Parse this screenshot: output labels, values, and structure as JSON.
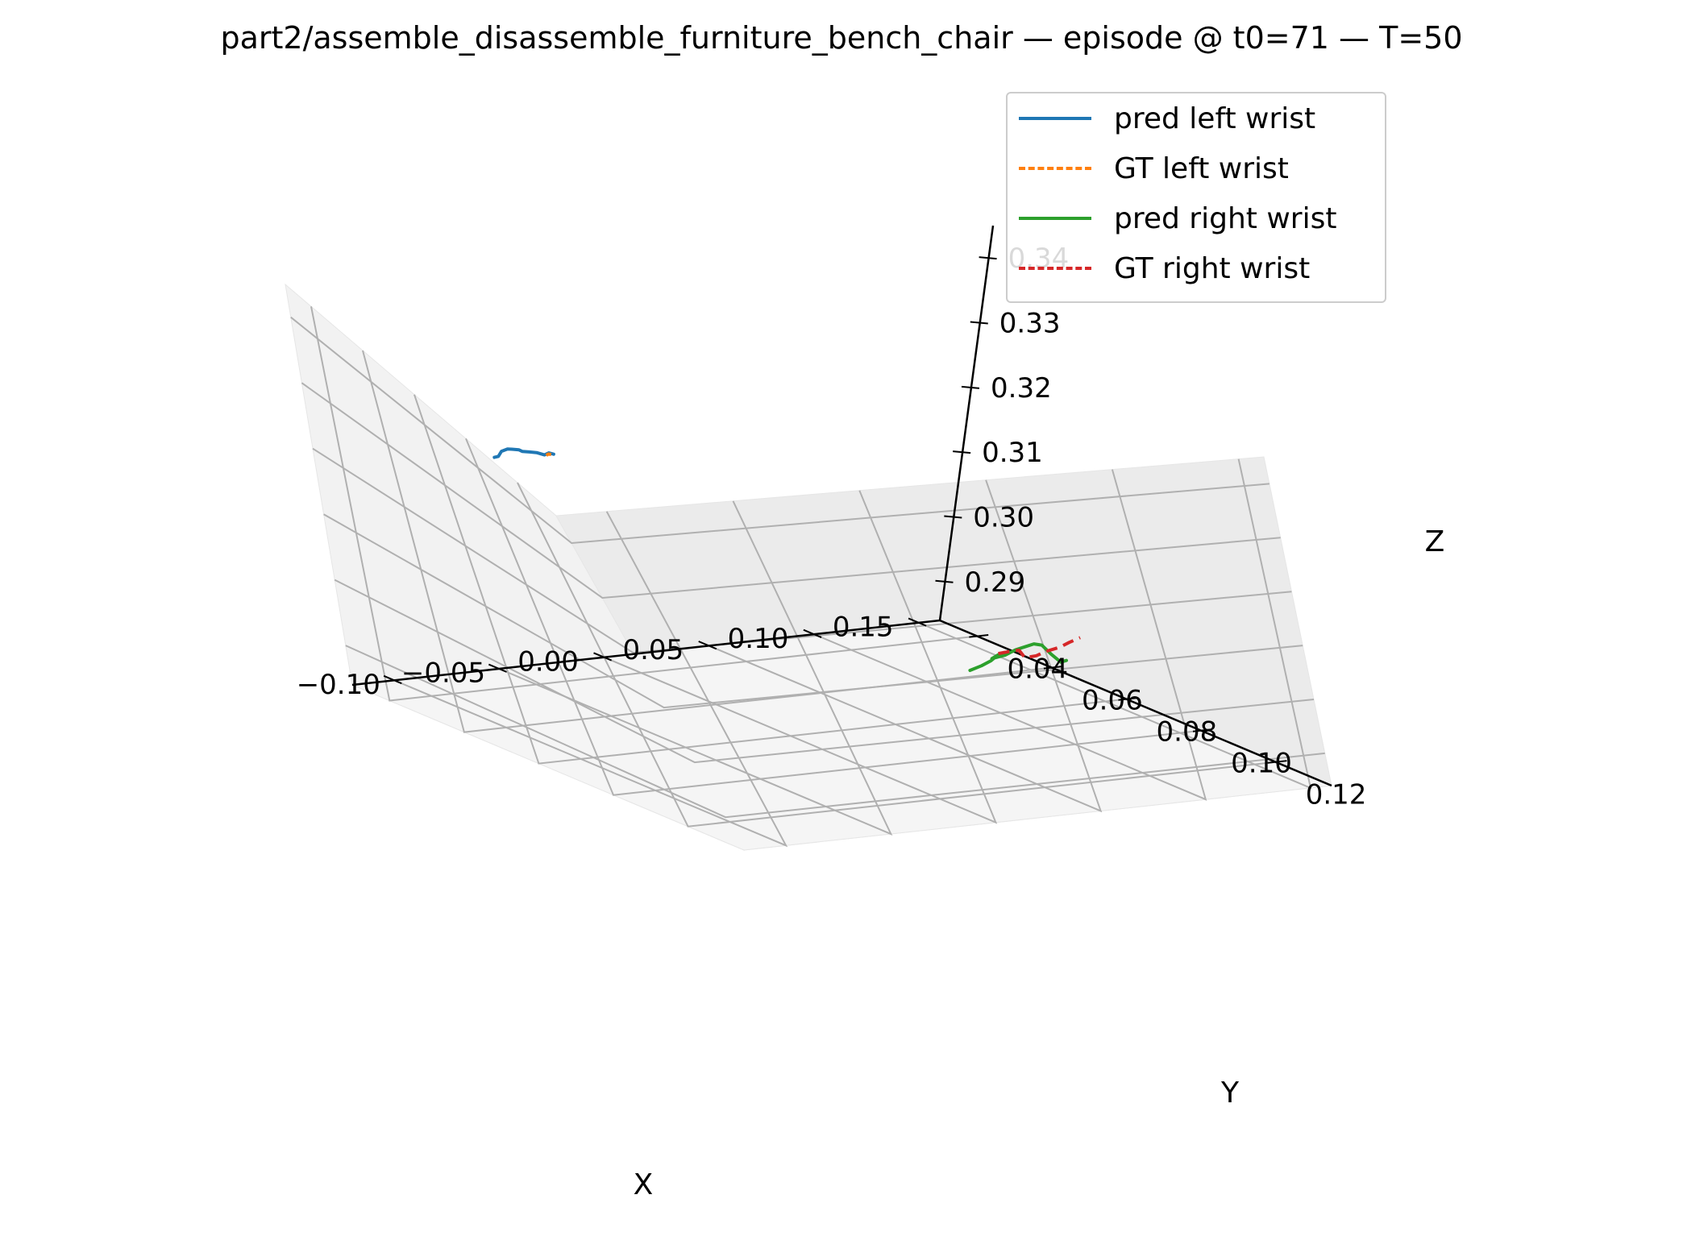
{
  "chart_data": {
    "type": "line",
    "projection": "3d",
    "title": "part2/assemble_disassemble_furniture_bench_chair — episode @ t0=71 — T=50",
    "xlabel": "X",
    "ylabel": "Y",
    "zlabel": "Z",
    "xlim": [
      -0.12,
      0.16
    ],
    "ylim": [
      0.03,
      0.135
    ],
    "zlim": [
      0.284,
      0.345
    ],
    "xticks": [
      "−0.10",
      "−0.05",
      "0.00",
      "0.05",
      "0.10",
      "0.15"
    ],
    "yticks": [
      "0.04",
      "0.06",
      "0.08",
      "0.10",
      "0.12"
    ],
    "zticks": [
      "0.29",
      "0.30",
      "0.31",
      "0.32",
      "0.33",
      "0.34"
    ],
    "grid": true,
    "legend_position": "top-right",
    "series": [
      {
        "name": "pred left wrist",
        "color": "#1f77b4",
        "style": "solid",
        "points": [
          [
            -0.112,
            0.1,
            0.3415
          ],
          [
            -0.111,
            0.101,
            0.342
          ],
          [
            -0.109,
            0.101,
            0.3428
          ],
          [
            -0.107,
            0.102,
            0.3435
          ],
          [
            -0.106,
            0.103,
            0.3438
          ],
          [
            -0.104,
            0.104,
            0.344
          ],
          [
            -0.103,
            0.104,
            0.3437
          ],
          [
            -0.101,
            0.105,
            0.3439
          ],
          [
            -0.099,
            0.106,
            0.3441
          ],
          [
            -0.097,
            0.107,
            0.344
          ],
          [
            -0.095,
            0.107,
            0.3443
          ],
          [
            -0.094,
            0.108,
            0.3444
          ]
        ]
      },
      {
        "name": "GT left wrist",
        "color": "#ff7f0e",
        "style": "dashed",
        "points": [
          [
            -0.097,
            0.108,
            0.3443
          ],
          [
            -0.096,
            0.108,
            0.3445
          ],
          [
            -0.095,
            0.108,
            0.3444
          ]
        ]
      },
      {
        "name": "pred right wrist",
        "color": "#2ca02c",
        "style": "solid",
        "points": [
          [
            0.121,
            0.06,
            0.285
          ],
          [
            0.123,
            0.062,
            0.2862
          ],
          [
            0.124,
            0.064,
            0.2875
          ],
          [
            0.124,
            0.066,
            0.289
          ],
          [
            0.121,
            0.066,
            0.2885
          ],
          [
            0.124,
            0.068,
            0.2895
          ],
          [
            0.127,
            0.069,
            0.2905
          ],
          [
            0.128,
            0.071,
            0.2915
          ],
          [
            0.129,
            0.073,
            0.2925
          ],
          [
            0.131,
            0.074,
            0.2925
          ],
          [
            0.132,
            0.076,
            0.2915
          ],
          [
            0.133,
            0.078,
            0.2907
          ],
          [
            0.134,
            0.079,
            0.2912
          ]
        ]
      },
      {
        "name": "GT right wrist",
        "color": "#d62728",
        "style": "dashed",
        "points": [
          [
            0.124,
            0.066,
            0.2892
          ],
          [
            0.126,
            0.068,
            0.29
          ],
          [
            0.127,
            0.07,
            0.2907
          ],
          [
            0.128,
            0.071,
            0.2897
          ],
          [
            0.13,
            0.073,
            0.2905
          ],
          [
            0.131,
            0.075,
            0.2917
          ],
          [
            0.133,
            0.078,
            0.2932
          ],
          [
            0.134,
            0.08,
            0.2945
          ],
          [
            0.136,
            0.082,
            0.2958
          ]
        ]
      }
    ]
  }
}
